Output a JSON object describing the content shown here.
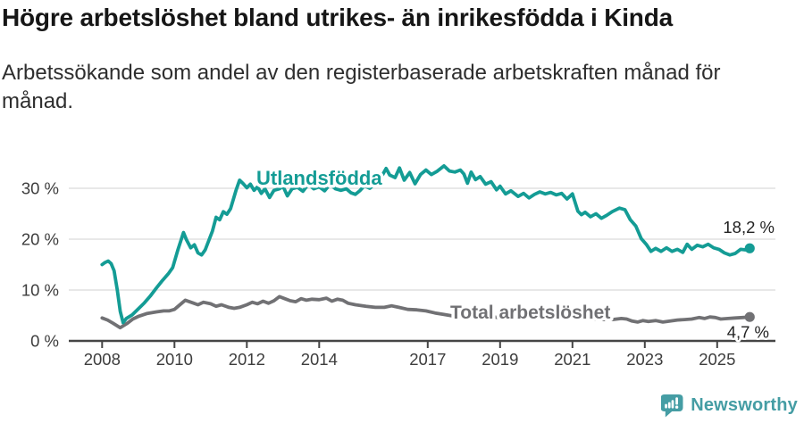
{
  "header": {
    "title": "Högre arbetslöshet bland utrikes- än inrikesfödda i Kinda",
    "subtitle": "Arbetssökande som andel av den registerbaserade arbetskraften månad för månad."
  },
  "colors": {
    "series_utlandsfodda": "#149c95",
    "series_total": "#717174",
    "gridline": "#d9d9d9",
    "axis": "#454545",
    "tick_text": "#3d3d3d",
    "value_label_text": "#222222",
    "title_text": "#161616",
    "brand_teal": "#459da4",
    "background": "#ffffff"
  },
  "chart_data": {
    "type": "line",
    "title": "Högre arbetslöshet bland utrikes- än inrikesfödda i Kinda",
    "subtitle": "Arbetssökande som andel av den registerbaserade arbetskraften månad för månad.",
    "xlabel": "",
    "ylabel": "",
    "xlim": [
      2007.1,
      2026.6
    ],
    "ylim": [
      0,
      35
    ],
    "grid": true,
    "gridlines_y": [
      10,
      20,
      30
    ],
    "y_ticks": [
      0,
      10,
      20,
      30
    ],
    "y_tick_labels": [
      "0 %",
      "10 %",
      "20 %",
      "30 %"
    ],
    "x_ticks": [
      2008,
      2010,
      2012,
      2014,
      2017,
      2019,
      2021,
      2023,
      2025
    ],
    "x_tick_labels": [
      "2008",
      "2010",
      "2012",
      "2014",
      "2017",
      "2019",
      "2021",
      "2023",
      "2025"
    ],
    "legend_position": "inline-labels",
    "series": [
      {
        "name": "Utlandsfödda",
        "color": "#149c95",
        "end_label": "18,2 %",
        "end_value": 18.2,
        "points": [
          [
            2008.0,
            15.0
          ],
          [
            2008.08,
            15.4
          ],
          [
            2008.17,
            15.7
          ],
          [
            2008.25,
            15.2
          ],
          [
            2008.33,
            13.8
          ],
          [
            2008.42,
            10.0
          ],
          [
            2008.5,
            5.8
          ],
          [
            2008.58,
            3.6
          ],
          [
            2008.67,
            4.4
          ],
          [
            2008.83,
            5.1
          ],
          [
            2009.0,
            6.3
          ],
          [
            2009.17,
            7.5
          ],
          [
            2009.33,
            8.8
          ],
          [
            2009.5,
            10.4
          ],
          [
            2009.67,
            11.9
          ],
          [
            2009.83,
            13.2
          ],
          [
            2009.95,
            14.4
          ],
          [
            2010.1,
            18.0
          ],
          [
            2010.25,
            21.3
          ],
          [
            2010.33,
            19.9
          ],
          [
            2010.45,
            18.3
          ],
          [
            2010.55,
            18.9
          ],
          [
            2010.65,
            17.3
          ],
          [
            2010.75,
            16.9
          ],
          [
            2010.85,
            17.9
          ],
          [
            2011.05,
            21.6
          ],
          [
            2011.15,
            24.3
          ],
          [
            2011.25,
            23.8
          ],
          [
            2011.35,
            25.4
          ],
          [
            2011.45,
            24.9
          ],
          [
            2011.55,
            26.0
          ],
          [
            2011.7,
            29.6
          ],
          [
            2011.8,
            31.6
          ],
          [
            2011.9,
            30.9
          ],
          [
            2012.0,
            30.1
          ],
          [
            2012.1,
            30.8
          ],
          [
            2012.2,
            29.6
          ],
          [
            2012.3,
            30.3
          ],
          [
            2012.4,
            29.0
          ],
          [
            2012.5,
            29.9
          ],
          [
            2012.63,
            28.2
          ],
          [
            2012.75,
            29.6
          ],
          [
            2012.9,
            29.9
          ],
          [
            2013.0,
            30.4
          ],
          [
            2013.12,
            28.5
          ],
          [
            2013.25,
            29.9
          ],
          [
            2013.4,
            30.2
          ],
          [
            2013.55,
            29.4
          ],
          [
            2013.7,
            30.8
          ],
          [
            2013.85,
            29.9
          ],
          [
            2014.0,
            30.3
          ],
          [
            2014.15,
            29.5
          ],
          [
            2014.3,
            30.8
          ],
          [
            2014.45,
            29.9
          ],
          [
            2014.6,
            29.6
          ],
          [
            2014.75,
            29.9
          ],
          [
            2014.88,
            29.1
          ],
          [
            2015.0,
            28.8
          ],
          [
            2015.12,
            29.5
          ],
          [
            2015.25,
            30.5
          ],
          [
            2015.4,
            30.0
          ],
          [
            2015.55,
            31.0
          ],
          [
            2015.7,
            32.0
          ],
          [
            2015.85,
            33.9
          ],
          [
            2015.95,
            32.6
          ],
          [
            2016.1,
            32.1
          ],
          [
            2016.22,
            34.0
          ],
          [
            2016.35,
            31.6
          ],
          [
            2016.5,
            33.1
          ],
          [
            2016.65,
            30.9
          ],
          [
            2016.8,
            32.7
          ],
          [
            2016.95,
            33.6
          ],
          [
            2017.1,
            32.7
          ],
          [
            2017.25,
            33.3
          ],
          [
            2017.45,
            34.4
          ],
          [
            2017.6,
            33.4
          ],
          [
            2017.75,
            33.2
          ],
          [
            2017.9,
            33.6
          ],
          [
            2018.0,
            32.8
          ],
          [
            2018.1,
            31.0
          ],
          [
            2018.2,
            33.2
          ],
          [
            2018.32,
            31.7
          ],
          [
            2018.45,
            32.3
          ],
          [
            2018.6,
            30.8
          ],
          [
            2018.75,
            31.3
          ],
          [
            2018.9,
            29.7
          ],
          [
            2019.0,
            30.4
          ],
          [
            2019.15,
            28.9
          ],
          [
            2019.3,
            29.5
          ],
          [
            2019.5,
            28.4
          ],
          [
            2019.65,
            29.0
          ],
          [
            2019.8,
            28.1
          ],
          [
            2019.95,
            28.8
          ],
          [
            2020.1,
            29.3
          ],
          [
            2020.25,
            28.9
          ],
          [
            2020.4,
            29.2
          ],
          [
            2020.55,
            28.7
          ],
          [
            2020.7,
            29.0
          ],
          [
            2020.85,
            27.9
          ],
          [
            2021.0,
            28.9
          ],
          [
            2021.15,
            25.5
          ],
          [
            2021.25,
            24.8
          ],
          [
            2021.35,
            25.3
          ],
          [
            2021.5,
            24.4
          ],
          [
            2021.65,
            25.0
          ],
          [
            2021.8,
            24.1
          ],
          [
            2021.95,
            24.7
          ],
          [
            2022.1,
            25.4
          ],
          [
            2022.3,
            26.1
          ],
          [
            2022.45,
            25.8
          ],
          [
            2022.6,
            23.8
          ],
          [
            2022.75,
            22.6
          ],
          [
            2022.9,
            20.1
          ],
          [
            2023.05,
            18.9
          ],
          [
            2023.17,
            17.6
          ],
          [
            2023.3,
            18.2
          ],
          [
            2023.45,
            17.6
          ],
          [
            2023.6,
            18.3
          ],
          [
            2023.75,
            17.6
          ],
          [
            2023.9,
            18.0
          ],
          [
            2024.05,
            17.4
          ],
          [
            2024.17,
            19.0
          ],
          [
            2024.3,
            18.0
          ],
          [
            2024.45,
            18.8
          ],
          [
            2024.6,
            18.5
          ],
          [
            2024.75,
            19.0
          ],
          [
            2024.9,
            18.3
          ],
          [
            2025.05,
            18.0
          ],
          [
            2025.2,
            17.3
          ],
          [
            2025.35,
            16.9
          ],
          [
            2025.5,
            17.2
          ],
          [
            2025.65,
            18.0
          ],
          [
            2025.78,
            17.9
          ],
          [
            2025.9,
            18.2
          ]
        ]
      },
      {
        "name": "Total arbetslöshet",
        "color": "#717174",
        "end_label": "4,7 %",
        "end_value": 4.7,
        "points": [
          [
            2008.0,
            4.5
          ],
          [
            2008.15,
            4.1
          ],
          [
            2008.3,
            3.5
          ],
          [
            2008.5,
            2.6
          ],
          [
            2008.7,
            3.5
          ],
          [
            2008.85,
            4.3
          ],
          [
            2009.0,
            4.8
          ],
          [
            2009.25,
            5.4
          ],
          [
            2009.5,
            5.7
          ],
          [
            2009.7,
            5.9
          ],
          [
            2009.85,
            5.9
          ],
          [
            2010.0,
            6.2
          ],
          [
            2010.15,
            7.1
          ],
          [
            2010.3,
            8.0
          ],
          [
            2010.5,
            7.5
          ],
          [
            2010.65,
            7.1
          ],
          [
            2010.8,
            7.6
          ],
          [
            2011.0,
            7.3
          ],
          [
            2011.15,
            6.8
          ],
          [
            2011.3,
            7.1
          ],
          [
            2011.5,
            6.6
          ],
          [
            2011.65,
            6.4
          ],
          [
            2011.8,
            6.6
          ],
          [
            2012.0,
            7.1
          ],
          [
            2012.15,
            7.6
          ],
          [
            2012.3,
            7.3
          ],
          [
            2012.45,
            7.8
          ],
          [
            2012.6,
            7.4
          ],
          [
            2012.75,
            7.9
          ],
          [
            2012.9,
            8.7
          ],
          [
            2013.05,
            8.3
          ],
          [
            2013.2,
            7.9
          ],
          [
            2013.35,
            7.7
          ],
          [
            2013.5,
            8.3
          ],
          [
            2013.65,
            8.0
          ],
          [
            2013.8,
            8.2
          ],
          [
            2014.0,
            8.1
          ],
          [
            2014.2,
            8.4
          ],
          [
            2014.35,
            7.8
          ],
          [
            2014.5,
            8.2
          ],
          [
            2014.65,
            8.0
          ],
          [
            2014.8,
            7.4
          ],
          [
            2015.0,
            7.1
          ],
          [
            2015.3,
            6.8
          ],
          [
            2015.55,
            6.6
          ],
          [
            2015.8,
            6.6
          ],
          [
            2016.0,
            6.9
          ],
          [
            2016.2,
            6.6
          ],
          [
            2016.45,
            6.2
          ],
          [
            2016.7,
            6.1
          ],
          [
            2016.95,
            5.9
          ],
          [
            2017.2,
            5.5
          ],
          [
            2017.45,
            5.2
          ],
          [
            2017.7,
            4.9
          ],
          [
            2018.0,
            4.7
          ],
          [
            2018.35,
            4.8
          ],
          [
            2018.6,
            4.5
          ],
          [
            2018.85,
            4.7
          ],
          [
            2019.1,
            4.4
          ],
          [
            2019.4,
            4.5
          ],
          [
            2019.7,
            4.7
          ],
          [
            2020.0,
            4.9
          ],
          [
            2020.3,
            5.1
          ],
          [
            2020.6,
            4.8
          ],
          [
            2020.9,
            4.6
          ],
          [
            2021.2,
            4.4
          ],
          [
            2021.5,
            4.3
          ],
          [
            2021.8,
            4.2
          ],
          [
            2022.1,
            4.2
          ],
          [
            2022.35,
            4.4
          ],
          [
            2022.5,
            4.3
          ],
          [
            2022.65,
            3.9
          ],
          [
            2022.8,
            3.7
          ],
          [
            2022.95,
            4.0
          ],
          [
            2023.1,
            3.8
          ],
          [
            2023.3,
            4.0
          ],
          [
            2023.5,
            3.7
          ],
          [
            2023.7,
            3.9
          ],
          [
            2023.9,
            4.1
          ],
          [
            2024.1,
            4.2
          ],
          [
            2024.3,
            4.3
          ],
          [
            2024.5,
            4.6
          ],
          [
            2024.65,
            4.4
          ],
          [
            2024.8,
            4.7
          ],
          [
            2024.95,
            4.6
          ],
          [
            2025.1,
            4.3
          ],
          [
            2025.3,
            4.4
          ],
          [
            2025.5,
            4.5
          ],
          [
            2025.7,
            4.6
          ],
          [
            2025.9,
            4.7
          ]
        ]
      }
    ]
  },
  "footer": {
    "brand": "Newsworthy"
  }
}
